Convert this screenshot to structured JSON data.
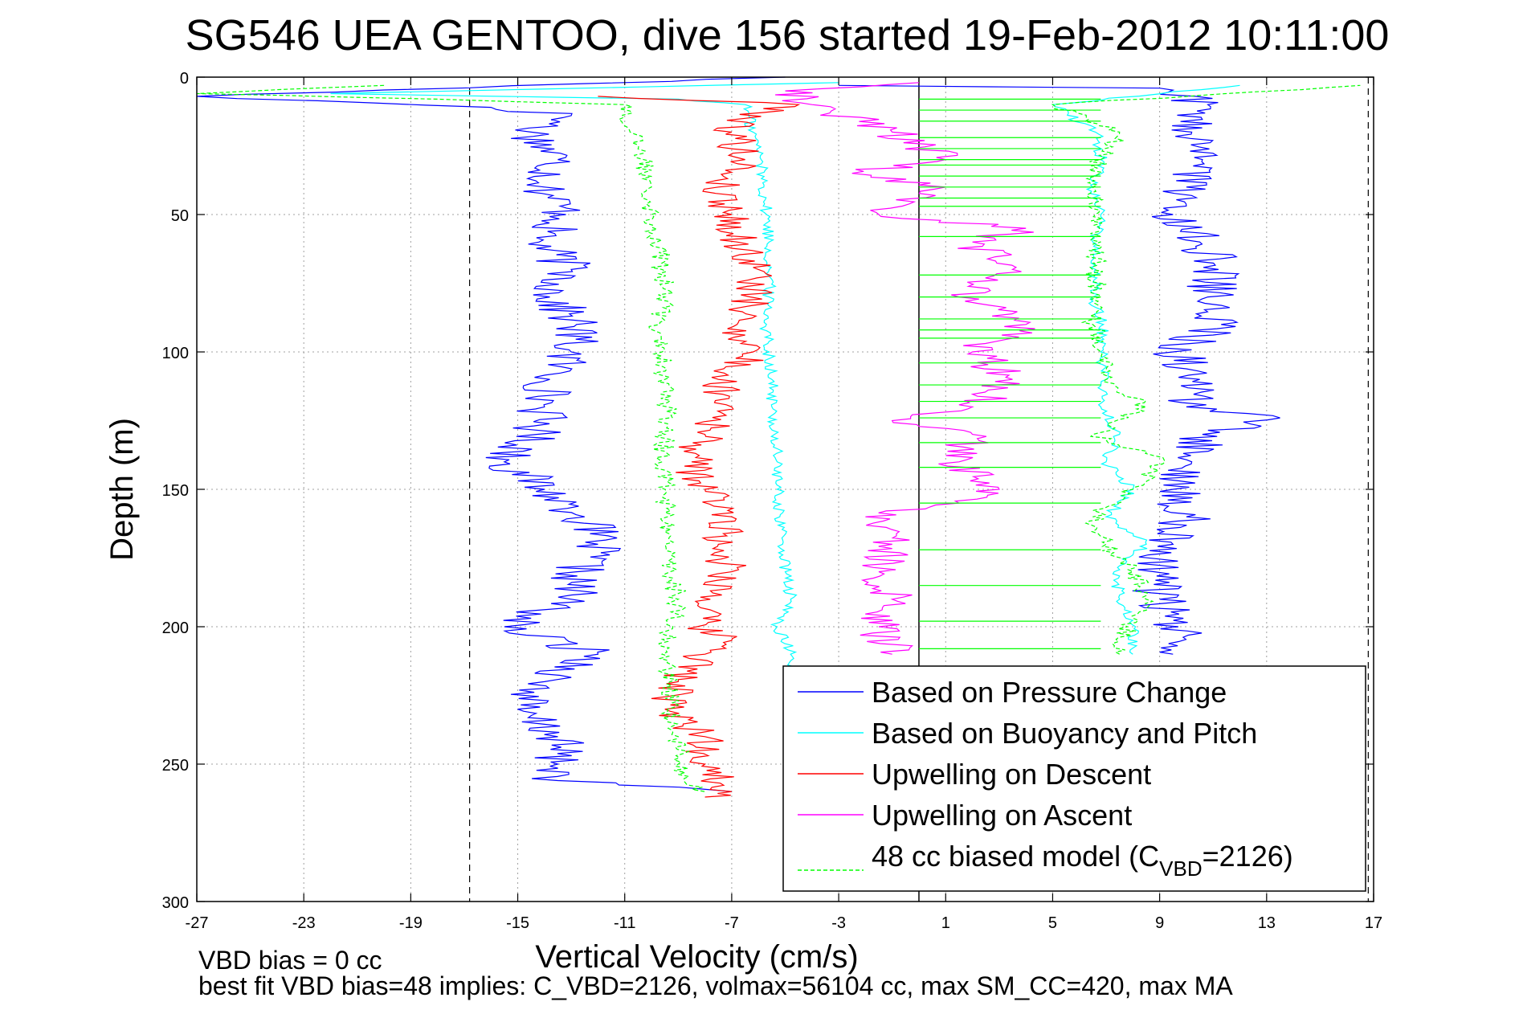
{
  "chart_data": {
    "type": "line",
    "title": "SG546 UEA GENTOO, dive 156 started 19-Feb-2012 10:11:00",
    "xlabel": "Vertical Velocity (cm/s)",
    "ylabel": "Depth (m)",
    "xlim": [
      -27,
      17
    ],
    "ylim": [
      0,
      300
    ],
    "y_inverted": true,
    "grid": true,
    "xticks": [
      "-27",
      "-23",
      "-19",
      "-15",
      "-11",
      "-7",
      "-3",
      "1",
      "5",
      "9",
      "13",
      "17"
    ],
    "yticks": [
      "0",
      "50",
      "100",
      "150",
      "200",
      "250",
      "300"
    ],
    "reference_lines": {
      "zero_line_x": 0,
      "dashed_x": [
        -16.8,
        16.8
      ]
    },
    "legend_placement": "bottom-right",
    "series": [
      {
        "name": "Based on Pressure Change",
        "color": "#0000ff",
        "descent": {
          "points": [
            [
              -5,
              0
            ],
            [
              -27,
              7
            ],
            [
              -16,
              11
            ],
            [
              -13,
              14
            ],
            [
              -14.5,
              20
            ],
            [
              -13.5,
              30
            ],
            [
              -14,
              40
            ],
            [
              -13.2,
              50
            ],
            [
              -14.2,
              60
            ],
            [
              -13,
              70
            ],
            [
              -13.8,
              80
            ],
            [
              -12.8,
              90
            ],
            [
              -13,
              100
            ],
            [
              -13.8,
              110
            ],
            [
              -14,
              120
            ],
            [
              -14.3,
              130
            ],
            [
              -15.5,
              140
            ],
            [
              -14,
              150
            ],
            [
              -12.5,
              160
            ],
            [
              -12,
              170
            ],
            [
              -12.8,
              180
            ],
            [
              -13,
              190
            ],
            [
              -15.5,
              200
            ],
            [
              -12,
              210
            ],
            [
              -14,
              220
            ],
            [
              -15,
              230
            ],
            [
              -13.5,
              240
            ],
            [
              -13.5,
              250
            ],
            [
              -13.5,
              256
            ],
            [
              -7,
              260
            ]
          ]
        },
        "ascent": {
          "points": [
            [
              9.5,
              210
            ],
            [
              9.7,
              200
            ],
            [
              9,
              190
            ],
            [
              8.8,
              180
            ],
            [
              9.5,
              170
            ],
            [
              10,
              160
            ],
            [
              9.5,
              150
            ],
            [
              10.2,
              140
            ],
            [
              10.6,
              130
            ],
            [
              13.5,
              124
            ],
            [
              10,
              120
            ],
            [
              10.5,
              110
            ],
            [
              9.5,
              100
            ],
            [
              11.3,
              90
            ],
            [
              10.8,
              80
            ],
            [
              11.2,
              70
            ],
            [
              10.5,
              60
            ],
            [
              9.5,
              50
            ],
            [
              10,
              40
            ],
            [
              10.6,
              30
            ],
            [
              10.2,
              20
            ],
            [
              10.8,
              10
            ],
            [
              9,
              4
            ],
            [
              -3,
              3
            ]
          ]
        }
      },
      {
        "name": "Based on Buoyancy and Pitch",
        "color": "#00ffff",
        "descent": {
          "points": [
            [
              -3,
              2
            ],
            [
              -22,
              6
            ],
            [
              -9,
              8
            ],
            [
              -6.5,
              10
            ],
            [
              -6.2,
              20
            ],
            [
              -5.9,
              30
            ],
            [
              -5.8,
              40
            ],
            [
              -5.7,
              50
            ],
            [
              -5.6,
              60
            ],
            [
              -5.6,
              70
            ],
            [
              -5.6,
              80
            ],
            [
              -5.7,
              90
            ],
            [
              -5.6,
              100
            ],
            [
              -5.5,
              110
            ],
            [
              -5.5,
              120
            ],
            [
              -5.4,
              130
            ],
            [
              -5.3,
              140
            ],
            [
              -5.3,
              150
            ],
            [
              -5.2,
              160
            ],
            [
              -5.1,
              170
            ],
            [
              -5,
              180
            ],
            [
              -4.8,
              190
            ],
            [
              -5.3,
              200
            ],
            [
              -4.8,
              210
            ],
            [
              -4.5,
              220
            ]
          ]
        },
        "ascent": {
          "points": [
            [
              8,
              210
            ],
            [
              8.1,
              200
            ],
            [
              7.5,
              190
            ],
            [
              7.3,
              180
            ],
            [
              8.5,
              170
            ],
            [
              7,
              160
            ],
            [
              8,
              150
            ],
            [
              7,
              140
            ],
            [
              7.5,
              130
            ],
            [
              6.8,
              120
            ],
            [
              7,
              110
            ],
            [
              6.8,
              100
            ],
            [
              6.9,
              90
            ],
            [
              6.5,
              80
            ],
            [
              6.6,
              70
            ],
            [
              6.5,
              60
            ],
            [
              6.8,
              50
            ],
            [
              6.5,
              40
            ],
            [
              6.8,
              30
            ],
            [
              6.6,
              20
            ],
            [
              5,
              10
            ],
            [
              12,
              3
            ]
          ]
        }
      },
      {
        "name": "Upwelling on Descent",
        "color": "#ff0000",
        "descent": {
          "points": [
            [
              -12,
              7
            ],
            [
              -4.5,
              10
            ],
            [
              -6.5,
              15
            ],
            [
              -7,
              20
            ],
            [
              -6.5,
              30
            ],
            [
              -7.5,
              40
            ],
            [
              -7,
              50
            ],
            [
              -6.8,
              60
            ],
            [
              -6,
              70
            ],
            [
              -6.3,
              80
            ],
            [
              -6.8,
              90
            ],
            [
              -6.2,
              100
            ],
            [
              -7.5,
              110
            ],
            [
              -7,
              120
            ],
            [
              -8,
              130
            ],
            [
              -8.5,
              140
            ],
            [
              -8,
              150
            ],
            [
              -7,
              160
            ],
            [
              -7.5,
              170
            ],
            [
              -7,
              180
            ],
            [
              -7.8,
              190
            ],
            [
              -8.3,
              200
            ],
            [
              -7,
              205
            ],
            [
              -8,
              210
            ],
            [
              -9,
              220
            ],
            [
              -9.5,
              230
            ],
            [
              -8,
              240
            ],
            [
              -8,
              250
            ],
            [
              -7,
              260
            ],
            [
              -8,
              262
            ]
          ]
        }
      },
      {
        "name": "Upwelling on Ascent",
        "color": "#ff00ff",
        "ascent": {
          "points": [
            [
              -1,
              210
            ],
            [
              -1.5,
              200
            ],
            [
              -1,
              190
            ],
            [
              -1.5,
              180
            ],
            [
              -1,
              170
            ],
            [
              -2,
              160
            ],
            [
              1.5,
              155
            ],
            [
              3,
              150
            ],
            [
              1.5,
              140
            ],
            [
              2,
              130
            ],
            [
              -1,
              125
            ],
            [
              2,
              120
            ],
            [
              3.5,
              110
            ],
            [
              2,
              100
            ],
            [
              4,
              90
            ],
            [
              1.5,
              80
            ],
            [
              3.5,
              70
            ],
            [
              2,
              60
            ],
            [
              4,
              55
            ],
            [
              -1.5,
              50
            ],
            [
              1,
              40
            ],
            [
              -2.5,
              35
            ],
            [
              1,
              30
            ],
            [
              -1,
              20
            ],
            [
              -4,
              10
            ],
            [
              -5,
              5
            ],
            [
              0,
              2
            ]
          ]
        }
      },
      {
        "name": "48 cc biased model (C",
        "name_sub": "VBD",
        "name_suffix": "=2126)",
        "color": "#00ff00",
        "dashed": true,
        "descent": {
          "points": [
            [
              -20,
              3
            ],
            [
              -27,
              6
            ],
            [
              -18,
              8
            ],
            [
              -11,
              10
            ],
            [
              -10.8,
              20
            ],
            [
              -10.3,
              30
            ],
            [
              -10,
              40
            ],
            [
              -10,
              50
            ],
            [
              -9.8,
              60
            ],
            [
              -9.6,
              70
            ],
            [
              -9.5,
              80
            ],
            [
              -9.7,
              90
            ],
            [
              -9.6,
              100
            ],
            [
              -9.5,
              110
            ],
            [
              -9.4,
              120
            ],
            [
              -9.5,
              130
            ],
            [
              -9.6,
              140
            ],
            [
              -9.5,
              150
            ],
            [
              -9.4,
              160
            ],
            [
              -9.5,
              170
            ],
            [
              -9.3,
              180
            ],
            [
              -9,
              190
            ],
            [
              -9.2,
              200
            ],
            [
              -9.6,
              210
            ],
            [
              -9.3,
              220
            ],
            [
              -9.4,
              230
            ],
            [
              -9,
              240
            ],
            [
              -9,
              250
            ],
            [
              -8.8,
              256
            ],
            [
              -8,
              260
            ]
          ]
        },
        "ascent": {
          "points": [
            [
              7.5,
              210
            ],
            [
              7.8,
              200
            ],
            [
              8.5,
              190
            ],
            [
              8,
              180
            ],
            [
              7,
              170
            ],
            [
              6.5,
              160
            ],
            [
              8,
              150
            ],
            [
              9.2,
              140
            ],
            [
              6.5,
              130
            ],
            [
              8.5,
              120
            ],
            [
              7,
              110
            ],
            [
              6.8,
              100
            ],
            [
              6.5,
              90
            ],
            [
              6.8,
              80
            ],
            [
              6.5,
              70
            ],
            [
              6.8,
              60
            ],
            [
              6.6,
              50
            ],
            [
              6.5,
              40
            ],
            [
              6.8,
              30
            ],
            [
              7.5,
              20
            ],
            [
              5,
              10
            ],
            [
              16.5,
              3
            ]
          ]
        },
        "horizontal_jumps": [
          8,
          12,
          16,
          22,
          26,
          30,
          32,
          36,
          40,
          44,
          47,
          58,
          72,
          80,
          88,
          92,
          95,
          104,
          112,
          118,
          124,
          133,
          142,
          155,
          172,
          185,
          198,
          208
        ]
      }
    ],
    "annotations": [
      "VBD bias = 0 cc",
      "best fit VBD bias=48 implies: C_VBD=2126, volmax=56104 cc, max SM_CC=420, max MA"
    ]
  }
}
